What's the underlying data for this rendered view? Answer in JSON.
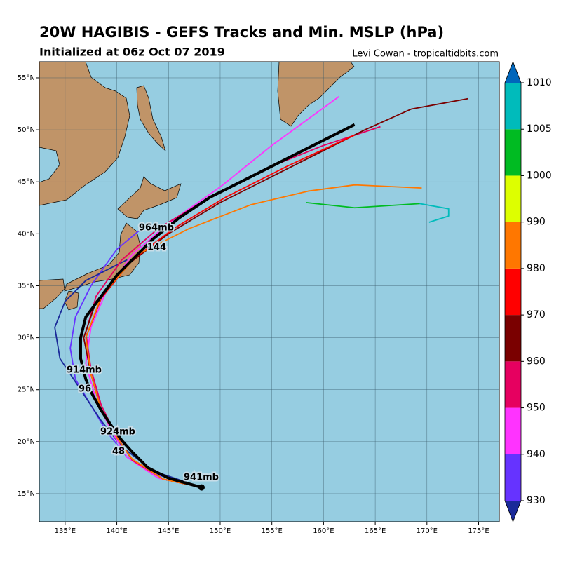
{
  "title": "20W HAGIBIS - GEFS Tracks and Min. MSLP (hPa)",
  "subtitle": "Initialized at 06z Oct 07 2019",
  "credit": "Levi Cowan - tropicaltidbits.com",
  "chart_data": {
    "type": "map",
    "xlim": [
      132.5,
      177
    ],
    "ylim": [
      12.3,
      56.55
    ],
    "xticks": [
      {
        "value": 135,
        "label": "135°E"
      },
      {
        "value": 140,
        "label": "140°E"
      },
      {
        "value": 145,
        "label": "145°E"
      },
      {
        "value": 150,
        "label": "150°E"
      },
      {
        "value": 155,
        "label": "155°E"
      },
      {
        "value": 160,
        "label": "160°E"
      },
      {
        "value": 165,
        "label": "165°E"
      },
      {
        "value": 170,
        "label": "170°E"
      },
      {
        "value": 175,
        "label": "175°E"
      }
    ],
    "yticks": [
      {
        "value": 15,
        "label": "15°N"
      },
      {
        "value": 20,
        "label": "20°N"
      },
      {
        "value": 25,
        "label": "25°N"
      },
      {
        "value": 30,
        "label": "30°N"
      },
      {
        "value": 35,
        "label": "35°N"
      },
      {
        "value": 40,
        "label": "40°N"
      },
      {
        "value": 45,
        "label": "45°N"
      },
      {
        "value": 50,
        "label": "50°N"
      },
      {
        "value": 55,
        "label": "55°N"
      }
    ],
    "grid": true,
    "series": [
      {
        "color": "#6633ff",
        "x": [
          148.2,
          144,
          141,
          139,
          137.5,
          136,
          135.5,
          136,
          137.5,
          140,
          143
        ],
        "y": [
          15.6,
          16.8,
          18.5,
          21,
          23.5,
          26,
          29,
          32,
          35,
          38.5,
          41
        ]
      },
      {
        "color": "#1a2a99",
        "x": [
          148.2,
          143.5,
          140.5,
          138.5,
          136.5,
          134.5,
          134,
          135,
          137,
          141
        ],
        "y": [
          15.6,
          17.2,
          19.5,
          22,
          25,
          28,
          31,
          33.5,
          35.5,
          37.5
        ]
      },
      {
        "color": "#ff33ff",
        "x": [
          148.2,
          144,
          141,
          139.5,
          138,
          137,
          137.5,
          139,
          141.5,
          145,
          150,
          155,
          161.5
        ],
        "y": [
          15.6,
          16.5,
          18.5,
          21,
          24,
          27.5,
          31,
          34.5,
          38,
          41,
          44.5,
          48.5,
          53.2
        ]
      },
      {
        "color": "#e60060",
        "x": [
          148.2,
          144.5,
          141.5,
          140,
          138.5,
          137.5,
          137,
          138,
          140.5,
          144,
          149,
          155,
          160,
          165.5
        ],
        "y": [
          15.6,
          16.4,
          18.2,
          20.5,
          23.5,
          27,
          30.5,
          34,
          37.5,
          40.5,
          43.5,
          46.5,
          48.5,
          50.3
        ]
      },
      {
        "color": "#7a0000",
        "x": [
          148.2,
          144.5,
          141.5,
          140,
          138.5,
          137.5,
          136.8,
          138,
          141,
          145,
          150,
          157,
          164,
          168.5,
          174
        ],
        "y": [
          15.6,
          16.4,
          18.3,
          20.4,
          23,
          26.5,
          30,
          33.5,
          37,
          40,
          43,
          46.5,
          50,
          52,
          53
        ]
      },
      {
        "color": "#ff0000",
        "x": [
          148.2,
          144.5,
          141.5,
          140,
          138.5,
          137.5,
          137,
          138.5,
          141.5,
          145.5,
          150.5,
          156.5,
          163
        ],
        "y": [
          15.6,
          16.4,
          18.3,
          20.4,
          23,
          26.5,
          30,
          33.8,
          37.5,
          40.5,
          43.5,
          46.5,
          49.5
        ]
      },
      {
        "color": "#ff7700",
        "x": [
          148.2,
          144.5,
          141.5,
          140,
          138.5,
          137.5,
          137,
          138.5,
          142,
          147,
          153,
          158.5,
          163,
          169.5
        ],
        "y": [
          15.6,
          16.4,
          18.3,
          20.4,
          23,
          26.5,
          30,
          34,
          38,
          40.5,
          42.8,
          44.1,
          44.7,
          44.4
        ]
      },
      {
        "color": "#00bb22",
        "x": [
          158.3,
          163,
          169.3
        ],
        "y": [
          43,
          42.5,
          42.9
        ]
      },
      {
        "color": "#00bbbb",
        "x": [
          169.3,
          172.1,
          172.1,
          170.2
        ],
        "y": [
          42.9,
          42.4,
          41.7,
          41.1
        ]
      },
      {
        "color": "#000000",
        "x": [
          148.2,
          145,
          143,
          141.5,
          140.5,
          139.5,
          138.5,
          137.5,
          137,
          136.5,
          136.5,
          137,
          138.5,
          140,
          142,
          143.5,
          146,
          149,
          153,
          157,
          160,
          163
        ],
        "y": [
          15.6,
          16.5,
          17.5,
          19,
          20.1,
          21.5,
          23,
          24.8,
          26,
          28,
          30,
          32,
          34,
          36,
          38,
          39.5,
          41.5,
          43.5,
          45.5,
          47.5,
          49,
          50.5
        ]
      }
    ],
    "annotations": [
      "964mb",
      "144",
      "914mb",
      "96",
      "924mb",
      "48",
      "941mb"
    ],
    "colorbar": {
      "ticks": [
        930,
        940,
        950,
        960,
        970,
        980,
        990,
        1000,
        1005,
        1010
      ],
      "colors": [
        "#6633ff",
        "#ff33ff",
        "#e60060",
        "#7a0000",
        "#ff0000",
        "#ff7700",
        "#ddff00",
        "#00bb22",
        "#00bbbb"
      ],
      "under": "#1a2a99",
      "over": "#0066bb"
    }
  }
}
